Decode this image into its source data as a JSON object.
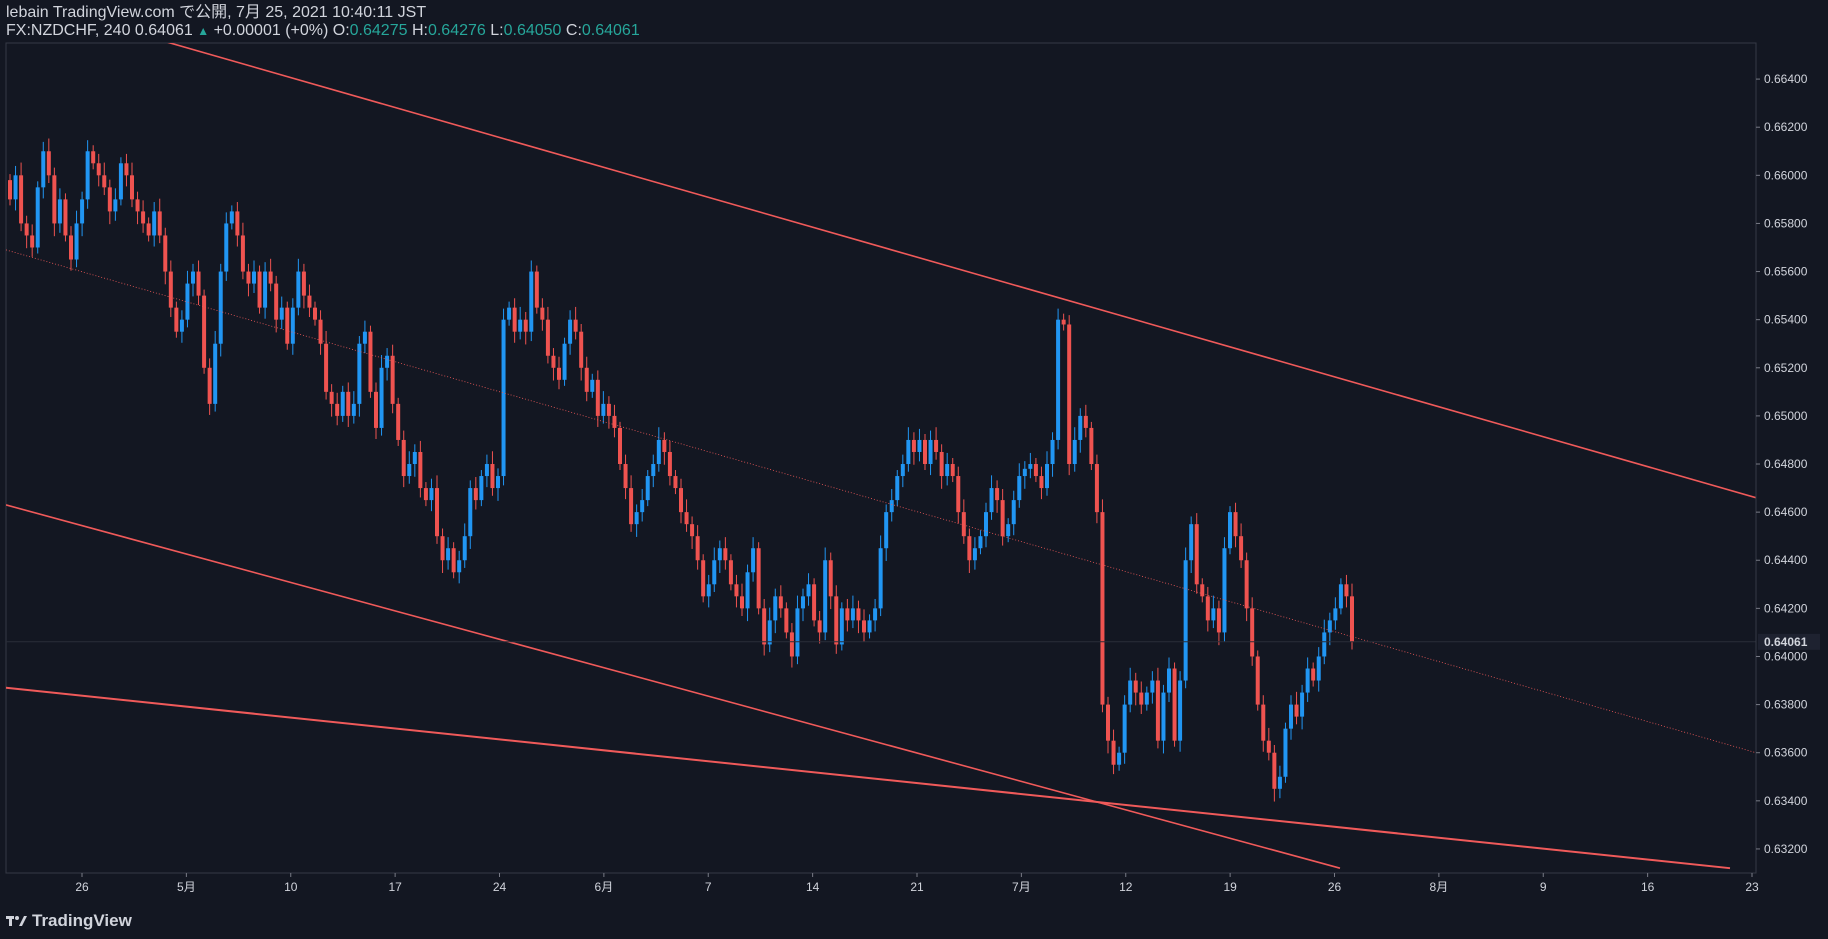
{
  "header": {
    "line1": "lebain TradingView.com で公開, 7月 25, 2021 10:40:11 JST",
    "symbol": "FX:NZDCHF, 240",
    "last": "0.64061",
    "change": "+0.00001 (+0%)",
    "o_label": "O:",
    "o_value": "0.64275",
    "h_label": "H:",
    "h_value": "0.64276",
    "l_label": "L:",
    "l_value": "0.64050",
    "c_label": "C:",
    "c_value": "0.64061"
  },
  "footer": {
    "brand": "TradingView"
  },
  "colors": {
    "background": "#131722",
    "up": "#2196f3",
    "down": "#ef5350",
    "trendline": "#f05a5a",
    "text": "#d1d4dc",
    "price_label_bg": "#1e2230"
  },
  "chart_data": {
    "type": "candlestick",
    "x_tick_labels": [
      "26",
      "5月",
      "10",
      "17",
      "24",
      "6月",
      "7",
      "14",
      "21",
      "7月",
      "12",
      "19",
      "26",
      "8月",
      "9",
      "16",
      "23"
    ],
    "y_tick_labels": [
      "0.66400",
      "0.66200",
      "0.66000",
      "0.65800",
      "0.65600",
      "0.65400",
      "0.65200",
      "0.65000",
      "0.64800",
      "0.64600",
      "0.64400",
      "0.64200",
      "0.64000",
      "0.63800",
      "0.63600",
      "0.63400",
      "0.63200"
    ],
    "y_range": [
      0.631,
      0.6655
    ],
    "current_price": "0.64061",
    "grid": false,
    "closes": [
      0.659,
      0.66,
      0.658,
      0.6575,
      0.657,
      0.6595,
      0.661,
      0.66,
      0.658,
      0.659,
      0.6575,
      0.6565,
      0.658,
      0.659,
      0.661,
      0.6605,
      0.66,
      0.6595,
      0.6585,
      0.659,
      0.6605,
      0.66,
      0.659,
      0.6585,
      0.658,
      0.6575,
      0.6585,
      0.6575,
      0.656,
      0.6545,
      0.6535,
      0.654,
      0.6555,
      0.656,
      0.655,
      0.652,
      0.6505,
      0.653,
      0.656,
      0.658,
      0.6585,
      0.6575,
      0.656,
      0.6555,
      0.656,
      0.6545,
      0.656,
      0.6555,
      0.654,
      0.6545,
      0.653,
      0.6545,
      0.656,
      0.655,
      0.6545,
      0.654,
      0.653,
      0.651,
      0.6505,
      0.65,
      0.651,
      0.65,
      0.6505,
      0.653,
      0.6535,
      0.651,
      0.6495,
      0.652,
      0.6525,
      0.6505,
      0.649,
      0.6475,
      0.648,
      0.6485,
      0.647,
      0.6465,
      0.647,
      0.645,
      0.644,
      0.6445,
      0.6435,
      0.644,
      0.645,
      0.647,
      0.6465,
      0.6475,
      0.648,
      0.647,
      0.6475,
      0.654,
      0.6545,
      0.6535,
      0.654,
      0.6535,
      0.656,
      0.6545,
      0.654,
      0.6525,
      0.652,
      0.6515,
      0.653,
      0.654,
      0.6535,
      0.652,
      0.651,
      0.6515,
      0.65,
      0.6505,
      0.65,
      0.6495,
      0.648,
      0.647,
      0.6455,
      0.646,
      0.6465,
      0.6475,
      0.648,
      0.649,
      0.6485,
      0.6475,
      0.647,
      0.646,
      0.6455,
      0.645,
      0.644,
      0.6425,
      0.643,
      0.644,
      0.6445,
      0.644,
      0.643,
      0.6425,
      0.642,
      0.6435,
      0.6445,
      0.642,
      0.6405,
      0.6415,
      0.6425,
      0.642,
      0.641,
      0.64,
      0.642,
      0.6425,
      0.643,
      0.6415,
      0.641,
      0.644,
      0.6425,
      0.6405,
      0.642,
      0.6415,
      0.642,
      0.6415,
      0.641,
      0.6415,
      0.642,
      0.6445,
      0.646,
      0.6465,
      0.6475,
      0.648,
      0.649,
      0.6485,
      0.649,
      0.648,
      0.649,
      0.6485,
      0.6475,
      0.648,
      0.6475,
      0.646,
      0.645,
      0.644,
      0.6445,
      0.645,
      0.646,
      0.647,
      0.6465,
      0.645,
      0.6455,
      0.6465,
      0.6475,
      0.6478,
      0.648,
      0.6475,
      0.647,
      0.648,
      0.649,
      0.654,
      0.6538,
      0.648,
      0.649,
      0.65,
      0.6495,
      0.648,
      0.646,
      0.638,
      0.6365,
      0.6355,
      0.636,
      0.638,
      0.639,
      0.6385,
      0.638,
      0.6385,
      0.639,
      0.6365,
      0.6385,
      0.6395,
      0.6365,
      0.639,
      0.644,
      0.6455,
      0.643,
      0.6425,
      0.6415,
      0.642,
      0.641,
      0.6445,
      0.646,
      0.645,
      0.644,
      0.642,
      0.64,
      0.638,
      0.6365,
      0.636,
      0.6345,
      0.635,
      0.637,
      0.638,
      0.6375,
      0.6385,
      0.6395,
      0.639,
      0.64,
      0.641,
      0.6415,
      0.642,
      0.643,
      0.6425,
      0.64061
    ]
  }
}
